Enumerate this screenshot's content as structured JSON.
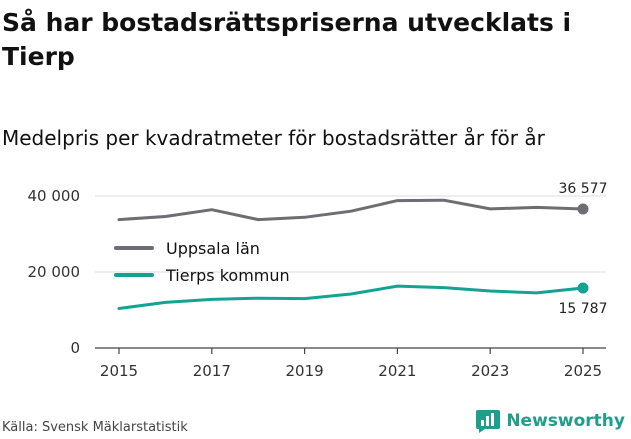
{
  "title": "Så har bostadsrättspriserna utvecklats i Tierp",
  "subtitle": "Medelpris per kvadratmeter för bostadsrätter år för år",
  "source": "Källa: Svensk Mäklarstatistik",
  "brand": {
    "name": "Newsworthy",
    "icon": "newsworthy-logo-icon",
    "color": "#1f9e8c"
  },
  "chart_data": {
    "type": "line",
    "x": [
      2015,
      2016,
      2017,
      2018,
      2019,
      2020,
      2021,
      2022,
      2023,
      2024,
      2025
    ],
    "xticks": [
      "2015",
      "2017",
      "2019",
      "2021",
      "2023",
      "2025"
    ],
    "yticks": [
      "0",
      "20 000",
      "40 000"
    ],
    "ylim": [
      0,
      40000
    ],
    "xlim": [
      2015,
      2025
    ],
    "series": [
      {
        "name": "Uppsala län",
        "color": "#6e6d73",
        "values": [
          33800,
          34600,
          36400,
          33800,
          34400,
          36000,
          38800,
          38900,
          36600,
          37000,
          36577
        ],
        "end_label": "36 577"
      },
      {
        "name": "Tierps kommun",
        "color": "#12a393",
        "values": [
          10400,
          12000,
          12800,
          13100,
          13000,
          14200,
          16300,
          15900,
          15000,
          14500,
          15787
        ],
        "end_label": "15 787"
      }
    ]
  }
}
